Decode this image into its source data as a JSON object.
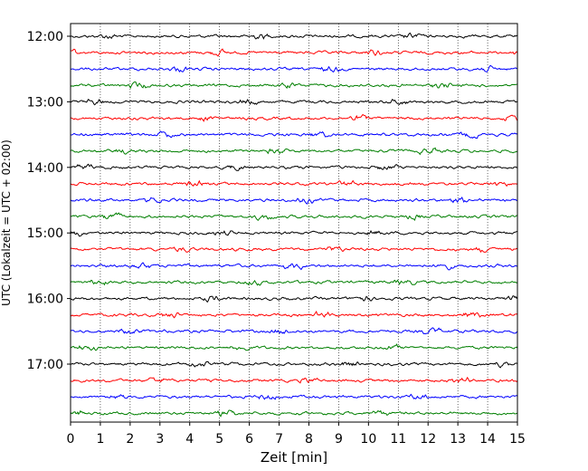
{
  "chart_data": {
    "type": "line",
    "title": "",
    "xlabel": "Zeit  [min]",
    "ylabel": "UTC (Lokalzeit = UTC + 02:00)",
    "xlim": [
      0,
      15
    ],
    "x_ticks": [
      "0",
      "1",
      "2",
      "3",
      "4",
      "5",
      "6",
      "7",
      "8",
      "9",
      "10",
      "11",
      "12",
      "13",
      "14",
      "15"
    ],
    "y_tick_labels": [
      "12:00",
      "13:00",
      "14:00",
      "15:00",
      "16:00",
      "17:00"
    ],
    "grid": "vertical dotted lines at each minute",
    "trace_interval_minutes": 15,
    "start_time": "12:00",
    "trace_colors": [
      "#000000",
      "#ff0000",
      "#0000ff",
      "#007f00"
    ],
    "rows": [
      {
        "start": "12:00",
        "color": "#000000"
      },
      {
        "start": "12:15",
        "color": "#ff0000"
      },
      {
        "start": "12:30",
        "color": "#0000ff"
      },
      {
        "start": "12:45",
        "color": "#007f00"
      },
      {
        "start": "13:00",
        "color": "#000000"
      },
      {
        "start": "13:15",
        "color": "#ff0000"
      },
      {
        "start": "13:30",
        "color": "#0000ff"
      },
      {
        "start": "13:45",
        "color": "#007f00"
      },
      {
        "start": "14:00",
        "color": "#000000"
      },
      {
        "start": "14:15",
        "color": "#ff0000"
      },
      {
        "start": "14:30",
        "color": "#0000ff"
      },
      {
        "start": "14:45",
        "color": "#007f00"
      },
      {
        "start": "15:00",
        "color": "#000000"
      },
      {
        "start": "15:15",
        "color": "#ff0000"
      },
      {
        "start": "15:30",
        "color": "#0000ff"
      },
      {
        "start": "15:45",
        "color": "#007f00"
      },
      {
        "start": "16:00",
        "color": "#000000"
      },
      {
        "start": "16:15",
        "color": "#ff0000"
      },
      {
        "start": "16:30",
        "color": "#0000ff"
      },
      {
        "start": "16:45",
        "color": "#007f00"
      },
      {
        "start": "17:00",
        "color": "#000000"
      },
      {
        "start": "17:15",
        "color": "#ff0000"
      },
      {
        "start": "17:30",
        "color": "#0000ff"
      },
      {
        "start": "17:45",
        "color": "#007f00"
      }
    ]
  }
}
